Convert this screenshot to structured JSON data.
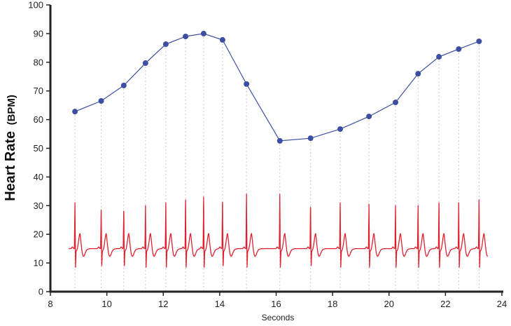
{
  "chart_data": {
    "type": "line",
    "title": "",
    "xlabel": "Seconds",
    "ylabel_main": "Heart Rate",
    "ylabel_unit": "(BPM)",
    "xlim": [
      8,
      24
    ],
    "ylim": [
      0,
      100
    ],
    "xticks": [
      8,
      10,
      12,
      14,
      16,
      18,
      20,
      22,
      24
    ],
    "yticks": [
      0,
      10,
      20,
      30,
      40,
      50,
      60,
      70,
      80,
      90,
      100
    ],
    "grid": false,
    "colors": {
      "heart_rate": "#3d4fa3",
      "ecg": "#e0202e",
      "beat_guides": "#c8c8c8",
      "axis": "#222222"
    },
    "series": [
      {
        "x": [
          8.87,
          9.8,
          10.6,
          11.37,
          12.09,
          12.79,
          13.43,
          14.1,
          14.95,
          16.13,
          17.22,
          18.27,
          19.29,
          20.23,
          21.03,
          21.77,
          22.47,
          23.19
        ],
        "y": [
          62.8,
          66.5,
          71.9,
          79.7,
          86.3,
          89.0,
          90.0,
          87.8,
          72.4,
          52.6,
          53.5,
          56.7,
          61.1,
          66.0,
          76.0,
          81.9,
          84.6,
          87.3
        ]
      }
    ],
    "ecg": {
      "start": 8.65,
      "end": 23.5,
      "baseline": 15,
      "r_peaks": [
        31,
        30,
        29.5,
        30,
        31,
        32,
        33,
        33,
        34,
        34,
        31,
        31,
        30.5,
        30,
        30,
        31,
        31,
        32
      ],
      "s_trough": 8.5,
      "t_peak": 20
    }
  }
}
